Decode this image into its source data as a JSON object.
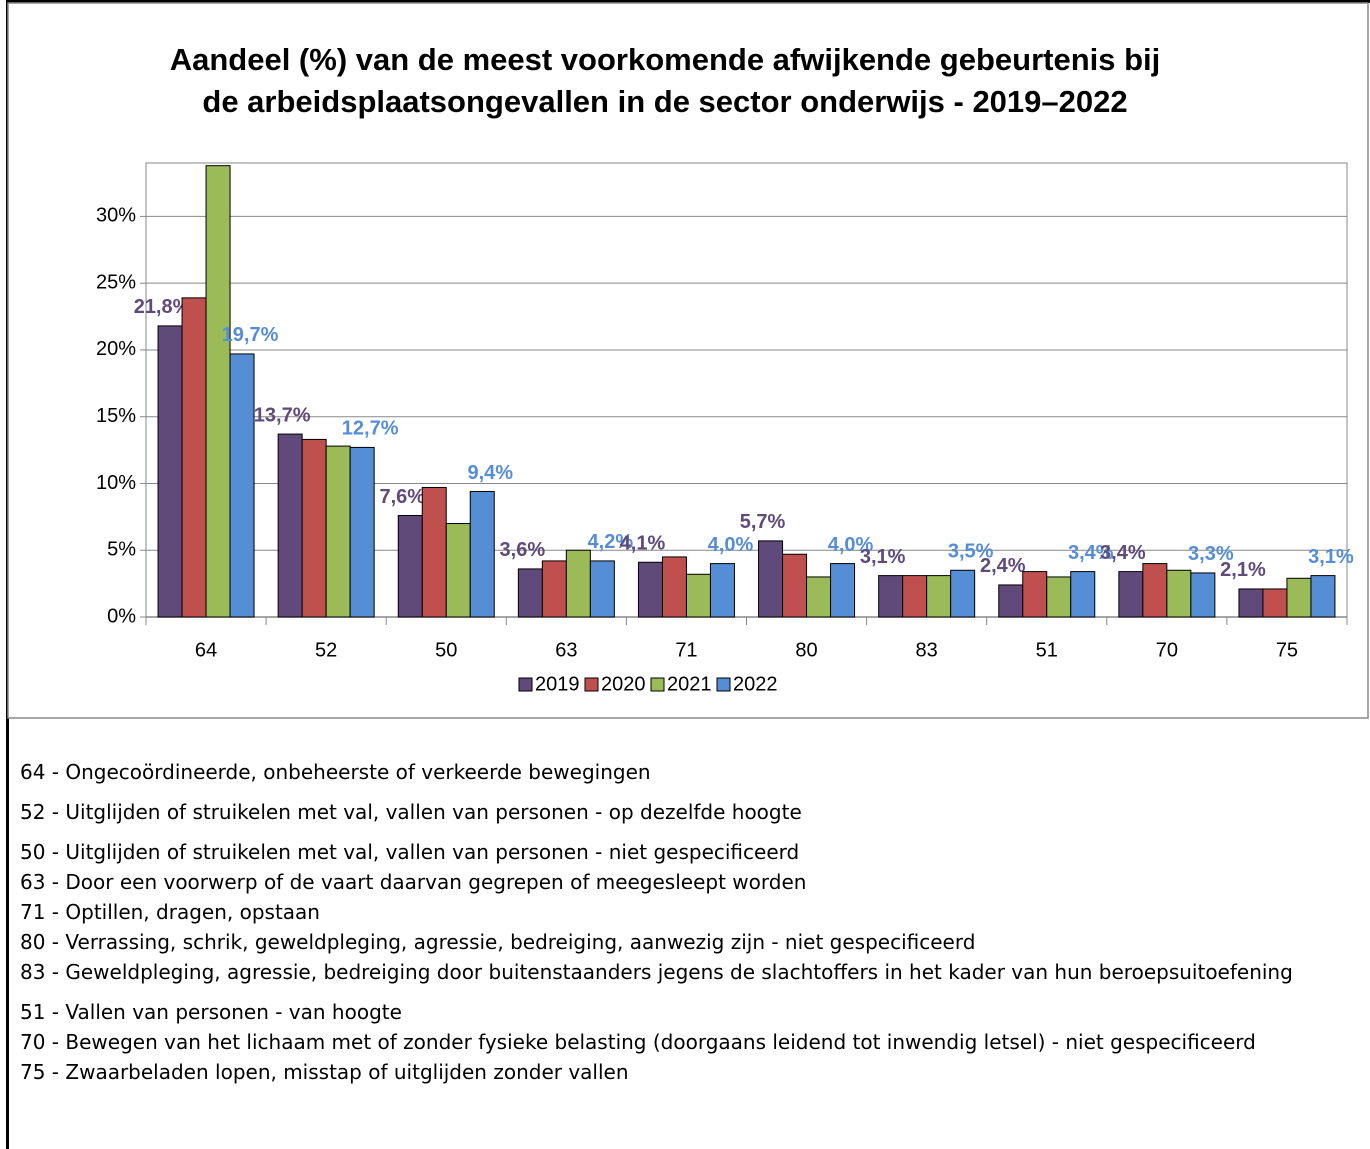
{
  "chart_data": {
    "type": "bar",
    "title": [
      "Aandeel (%) van de meest voorkomende afwijkende gebeurtenis bij",
      "de arbeidsplaatsongevallen in de sector onderwijs - 2019–2022"
    ],
    "categories": [
      "64",
      "52",
      "50",
      "63",
      "71",
      "80",
      "83",
      "51",
      "70",
      "75"
    ],
    "series": [
      {
        "name": "2019",
        "color": "#604a7b",
        "values": [
          21.8,
          13.7,
          7.6,
          3.6,
          4.1,
          5.7,
          3.1,
          2.4,
          3.4,
          2.1
        ],
        "value_labels": [
          "21,8%",
          "13,7%",
          "7,6%",
          "3,6%",
          "4,1%",
          "5,7%",
          "3,1%",
          "2,4%",
          "3,4%",
          "2,1%"
        ]
      },
      {
        "name": "2020",
        "color": "#c0504d",
        "values": [
          23.9,
          13.3,
          9.7,
          4.2,
          4.5,
          4.7,
          3.1,
          3.4,
          4.0,
          2.1
        ]
      },
      {
        "name": "2021",
        "color": "#9bbb59",
        "values": [
          33.8,
          12.8,
          7.0,
          5.0,
          3.2,
          3.0,
          3.1,
          3.0,
          3.5,
          2.9
        ]
      },
      {
        "name": "2022",
        "color": "#558ed5",
        "values": [
          19.7,
          12.7,
          9.4,
          4.2,
          4.0,
          4.0,
          3.5,
          3.4,
          3.3,
          3.1
        ],
        "value_labels": [
          "19,7%",
          "12,7%",
          "9,4%",
          "4,2%",
          "4,0%",
          "4,0%",
          "3,5%",
          "3,4%",
          "3,3%",
          "3,1%"
        ]
      }
    ],
    "ylim": [
      0,
      34
    ],
    "yticks": [
      {
        "value": 0,
        "label": "0%"
      },
      {
        "value": 5,
        "label": "5%"
      },
      {
        "value": 10,
        "label": "10%"
      },
      {
        "value": 15,
        "label": "15%"
      },
      {
        "value": 20,
        "label": "20%"
      },
      {
        "value": 25,
        "label": "25%"
      },
      {
        "value": 30,
        "label": "30%"
      }
    ],
    "grid": true,
    "legend": "bottom"
  },
  "notes": [
    "64 - Ongecoördineerde, onbeheerste of verkeerde bewegingen",
    "52 - Uitglijden of struikelen met val, vallen van personen - op dezelfde hoogte",
    "50 - Uitglijden of struikelen met val, vallen van personen - niet gespecificeerd",
    "63 - Door een voorwerp of de vaart daarvan gegrepen of meegesleept worden",
    "71 - Optillen, dragen, opstaan",
    "80 - Verrassing, schrik, geweldpleging, agressie, bedreiging, aanwezig zijn - niet gespecificeerd",
    "83 - Geweldpleging, agressie, bedreiging door buitenstaanders jegens de slachtoffers in het kader van hun beroepsuitoefening",
    "51 - Vallen van personen - van hoogte",
    "70 - Bewegen van het lichaam met of zonder fysieke belasting (doorgaans leidend tot inwendig letsel) - niet gespecificeerd",
    "75 - Zwaarbeladen lopen, misstap of uitglijden zonder vallen"
  ]
}
